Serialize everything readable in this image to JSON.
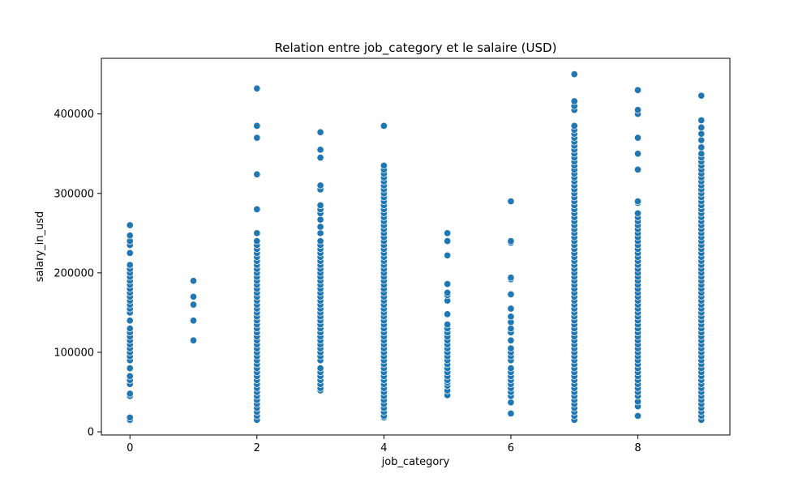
{
  "chart_data": {
    "type": "scatter",
    "title": "Relation entre job_category et le salaire (USD)",
    "xlabel": "job_category",
    "ylabel": "salary_in_usd",
    "xlim": [
      -0.45,
      9.45
    ],
    "ylim": [
      -4000,
      470000
    ],
    "xticks": [
      0,
      2,
      4,
      6,
      8
    ],
    "yticks": [
      0,
      100000,
      200000,
      300000,
      400000
    ],
    "grid": false,
    "legend": "none",
    "marker_color": "#1f77b4",
    "points": [
      {
        "x": 0,
        "y": [
          15000,
          18000,
          45000,
          48000,
          60000,
          65000,
          70000,
          80000,
          90000,
          95000,
          100000,
          105000,
          110000,
          115000,
          120000,
          125000,
          130000,
          140000,
          150000,
          155000,
          160000,
          165000,
          170000,
          175000,
          180000,
          185000,
          190000,
          195000,
          200000,
          205000,
          210000,
          225000,
          235000,
          240000,
          247000,
          260000
        ]
      },
      {
        "x": 1,
        "y": [
          115000,
          140000,
          160000,
          170000,
          190000
        ]
      },
      {
        "x": 2,
        "y": [
          15000,
          20000,
          25000,
          30000,
          35000,
          40000,
          45000,
          50000,
          55000,
          60000,
          65000,
          70000,
          75000,
          80000,
          85000,
          90000,
          95000,
          100000,
          105000,
          110000,
          115000,
          120000,
          125000,
          130000,
          135000,
          140000,
          145000,
          150000,
          155000,
          160000,
          165000,
          170000,
          175000,
          180000,
          185000,
          190000,
          195000,
          200000,
          205000,
          210000,
          215000,
          220000,
          225000,
          230000,
          235000,
          240000,
          250000,
          280000,
          324000,
          370000,
          385000,
          432000
        ]
      },
      {
        "x": 3,
        "y": [
          52000,
          55000,
          60000,
          65000,
          70000,
          75000,
          80000,
          90000,
          95000,
          100000,
          105000,
          110000,
          115000,
          120000,
          125000,
          130000,
          135000,
          140000,
          145000,
          150000,
          155000,
          160000,
          165000,
          170000,
          175000,
          180000,
          185000,
          190000,
          195000,
          200000,
          205000,
          210000,
          215000,
          220000,
          225000,
          230000,
          235000,
          240000,
          250000,
          258000,
          267000,
          275000,
          280000,
          285000,
          305000,
          310000,
          345000,
          355000,
          377000
        ]
      },
      {
        "x": 4,
        "y": [
          18000,
          20000,
          25000,
          30000,
          35000,
          40000,
          45000,
          50000,
          55000,
          60000,
          65000,
          70000,
          75000,
          80000,
          85000,
          90000,
          95000,
          100000,
          105000,
          110000,
          115000,
          120000,
          125000,
          130000,
          135000,
          140000,
          145000,
          150000,
          155000,
          160000,
          165000,
          170000,
          175000,
          180000,
          185000,
          190000,
          195000,
          200000,
          205000,
          210000,
          215000,
          220000,
          225000,
          230000,
          235000,
          240000,
          245000,
          250000,
          255000,
          260000,
          265000,
          270000,
          275000,
          280000,
          285000,
          290000,
          295000,
          300000,
          305000,
          310000,
          315000,
          320000,
          325000,
          330000,
          335000,
          385000
        ]
      },
      {
        "x": 5,
        "y": [
          46000,
          52000,
          58000,
          62000,
          65000,
          70000,
          75000,
          80000,
          85000,
          90000,
          95000,
          100000,
          105000,
          110000,
          115000,
          120000,
          125000,
          130000,
          135000,
          148000,
          165000,
          172000,
          175000,
          186000,
          222000,
          240000,
          250000
        ]
      },
      {
        "x": 6,
        "y": [
          23000,
          37000,
          45000,
          50000,
          55000,
          60000,
          65000,
          70000,
          75000,
          80000,
          90000,
          95000,
          100000,
          105000,
          115000,
          125000,
          130000,
          138000,
          145000,
          155000,
          173000,
          192000,
          194000,
          238000,
          240000,
          290000
        ]
      },
      {
        "x": 7,
        "y": [
          15000,
          20000,
          25000,
          30000,
          35000,
          40000,
          45000,
          50000,
          55000,
          60000,
          65000,
          70000,
          75000,
          80000,
          85000,
          90000,
          95000,
          100000,
          105000,
          110000,
          115000,
          120000,
          125000,
          130000,
          135000,
          140000,
          145000,
          150000,
          155000,
          160000,
          165000,
          170000,
          175000,
          180000,
          185000,
          190000,
          195000,
          200000,
          205000,
          210000,
          215000,
          220000,
          225000,
          230000,
          235000,
          240000,
          245000,
          250000,
          255000,
          260000,
          265000,
          270000,
          275000,
          280000,
          285000,
          290000,
          295000,
          300000,
          305000,
          310000,
          315000,
          320000,
          325000,
          330000,
          335000,
          340000,
          345000,
          350000,
          355000,
          360000,
          365000,
          370000,
          375000,
          380000,
          385000,
          405000,
          410000,
          416000,
          450000
        ]
      },
      {
        "x": 8,
        "y": [
          20000,
          32000,
          38000,
          45000,
          50000,
          55000,
          60000,
          65000,
          70000,
          75000,
          80000,
          85000,
          90000,
          95000,
          100000,
          105000,
          110000,
          115000,
          120000,
          125000,
          130000,
          135000,
          140000,
          145000,
          150000,
          155000,
          160000,
          165000,
          170000,
          175000,
          180000,
          185000,
          190000,
          195000,
          200000,
          205000,
          210000,
          215000,
          220000,
          225000,
          230000,
          235000,
          240000,
          245000,
          250000,
          255000,
          260000,
          265000,
          270000,
          275000,
          288000,
          290000,
          330000,
          350000,
          370000,
          400000,
          405000,
          430000
        ]
      },
      {
        "x": 9,
        "y": [
          15000,
          20000,
          25000,
          30000,
          35000,
          40000,
          45000,
          50000,
          55000,
          60000,
          65000,
          70000,
          75000,
          80000,
          85000,
          90000,
          95000,
          100000,
          105000,
          110000,
          115000,
          120000,
          125000,
          130000,
          135000,
          140000,
          145000,
          150000,
          155000,
          160000,
          165000,
          170000,
          175000,
          180000,
          185000,
          190000,
          195000,
          200000,
          205000,
          210000,
          215000,
          220000,
          225000,
          230000,
          235000,
          240000,
          245000,
          250000,
          255000,
          260000,
          265000,
          270000,
          275000,
          280000,
          285000,
          290000,
          295000,
          300000,
          305000,
          310000,
          315000,
          320000,
          325000,
          330000,
          335000,
          340000,
          345000,
          350000,
          358000,
          367000,
          375000,
          383000,
          392000,
          423000
        ]
      }
    ]
  }
}
